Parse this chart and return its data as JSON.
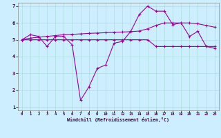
{
  "title": "",
  "xlabel": "Windchill (Refroidissement éolien,°C)",
  "bg_color": "#cceeff",
  "line_color": "#990099",
  "grid_color": "#aadddd",
  "xlim": [
    -0.5,
    23.5
  ],
  "ylim": [
    0.8,
    7.2
  ],
  "yticks": [
    1,
    2,
    3,
    4,
    5,
    6,
    7
  ],
  "xticks": [
    0,
    1,
    2,
    3,
    4,
    5,
    6,
    7,
    8,
    9,
    10,
    11,
    12,
    13,
    14,
    15,
    16,
    17,
    18,
    19,
    20,
    21,
    22,
    23
  ],
  "line1_x": [
    0,
    1,
    2,
    3,
    4,
    5,
    6,
    7,
    8,
    9,
    10,
    11,
    12,
    13,
    14,
    15,
    16,
    17,
    18,
    19,
    20,
    21,
    22,
    23
  ],
  "line1_y": [
    5.0,
    5.3,
    5.2,
    4.6,
    5.2,
    5.2,
    4.7,
    1.4,
    2.2,
    3.3,
    3.5,
    4.8,
    4.9,
    5.5,
    6.5,
    7.0,
    6.7,
    6.7,
    5.9,
    6.0,
    5.2,
    5.5,
    4.6,
    4.5
  ],
  "line2_x": [
    0,
    1,
    2,
    3,
    4,
    5,
    6,
    7,
    8,
    9,
    10,
    11,
    12,
    13,
    14,
    15,
    16,
    17,
    18,
    19,
    20,
    21,
    22,
    23
  ],
  "line2_y": [
    5.0,
    5.0,
    5.0,
    5.0,
    5.0,
    5.0,
    5.0,
    5.0,
    5.0,
    5.0,
    5.0,
    5.0,
    5.0,
    5.0,
    5.0,
    5.0,
    4.6,
    4.6,
    4.6,
    4.6,
    4.6,
    4.6,
    4.6,
    4.6
  ],
  "line3_x": [
    0,
    1,
    2,
    3,
    4,
    5,
    6,
    7,
    8,
    9,
    10,
    11,
    12,
    13,
    14,
    15,
    16,
    17,
    18,
    19,
    20,
    21,
    22,
    23
  ],
  "line3_y": [
    5.0,
    5.1,
    5.15,
    5.2,
    5.25,
    5.3,
    5.32,
    5.35,
    5.38,
    5.4,
    5.42,
    5.44,
    5.46,
    5.48,
    5.52,
    5.65,
    5.85,
    6.0,
    6.0,
    6.0,
    6.0,
    5.95,
    5.85,
    5.75
  ]
}
